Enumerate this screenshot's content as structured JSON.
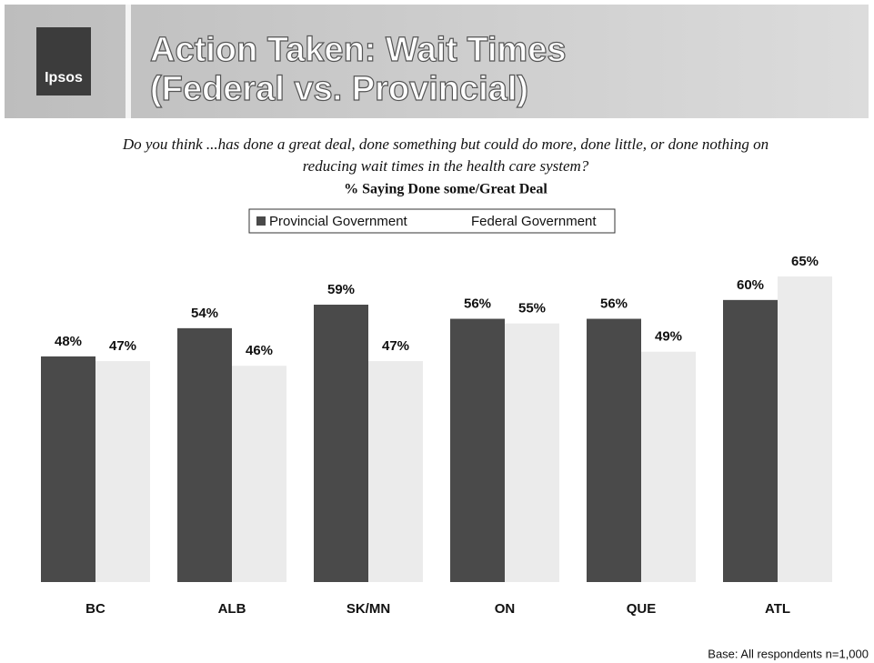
{
  "logo": "Ipsos",
  "chart_data": {
    "type": "bar",
    "title_lines": [
      "Action Taken: Wait Times",
      "(Federal vs. Provincial)"
    ],
    "question_lines": [
      "Do you think ...has done a great deal, done something but could do more, done little, or done nothing on",
      "reducing wait times in the health care system?"
    ],
    "subtitle": "% Saying Done some/Great Deal",
    "categories": [
      "BC",
      "ALB",
      "SK/MN",
      "ON",
      "QUE",
      "ATL"
    ],
    "series": [
      {
        "name": "Provincial Government",
        "color": "#4a4a4a",
        "values": [
          48,
          54,
          59,
          56,
          56,
          60
        ],
        "value_labels": [
          "48%",
          "54%",
          "59%",
          "56%",
          "56%",
          "60%"
        ]
      },
      {
        "name": "Federal Government",
        "color": "#ebebeb",
        "values": [
          47,
          46,
          47,
          55,
          49,
          65
        ],
        "value_labels": [
          "47%",
          "46%",
          "47%",
          "55%",
          "49%",
          "65%"
        ]
      }
    ]
  },
  "footnote": "Base: All respondents n=1,000"
}
